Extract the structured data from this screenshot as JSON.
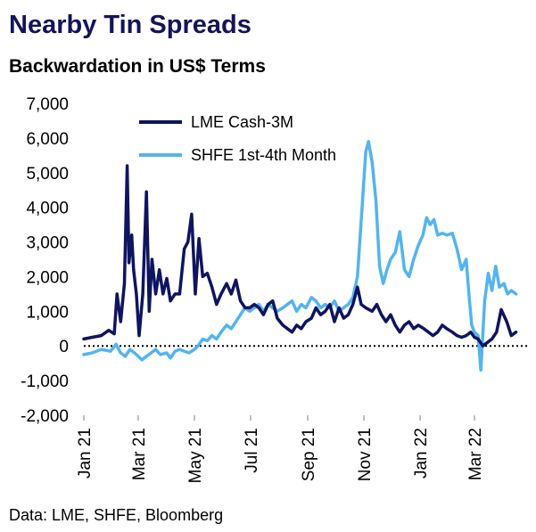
{
  "title": "Nearby Tin Spreads",
  "subtitle": "Backwardation in US$ Terms",
  "source": "Data: LME, SHFE, Bloomberg",
  "chart_data": {
    "type": "line",
    "title": "Nearby Tin Spreads",
    "subtitle": "Backwardation in US$ Terms",
    "ylim": [
      -2000,
      7000
    ],
    "yticks": [
      -2000,
      -1000,
      0,
      1000,
      2000,
      3000,
      4000,
      5000,
      6000,
      7000
    ],
    "ytick_labels": [
      "-2,000",
      "-1,000",
      "0",
      "1,000",
      "2,000",
      "3,000",
      "4,000",
      "5,000",
      "6,000",
      "7,000"
    ],
    "xlim": [
      "2021-01-01",
      "2022-04-30"
    ],
    "xticks": [
      "2021-01-01",
      "2021-03-01",
      "2021-05-01",
      "2021-07-01",
      "2021-09-01",
      "2021-11-01",
      "2022-01-01",
      "2022-03-01"
    ],
    "xtick_labels": [
      "Jan 21",
      "Mar 21",
      "May 21",
      "Jul 21",
      "Sep 21",
      "Nov 21",
      "Jan 22",
      "Mar 22"
    ],
    "zero_line": "dotted",
    "grid": false,
    "legend_position": "top",
    "series": [
      {
        "name": "LME Cash-3M",
        "color": "#0f1460",
        "points": [
          [
            "2021-01-01",
            200
          ],
          [
            "2021-01-10",
            250
          ],
          [
            "2021-01-20",
            300
          ],
          [
            "2021-01-28",
            450
          ],
          [
            "2021-02-03",
            350
          ],
          [
            "2021-02-06",
            1500
          ],
          [
            "2021-02-10",
            700
          ],
          [
            "2021-02-14",
            1800
          ],
          [
            "2021-02-17",
            5200
          ],
          [
            "2021-02-19",
            2400
          ],
          [
            "2021-02-22",
            3200
          ],
          [
            "2021-02-24",
            2200
          ],
          [
            "2021-02-27",
            1500
          ],
          [
            "2021-03-02",
            300
          ],
          [
            "2021-03-06",
            1500
          ],
          [
            "2021-03-10",
            4450
          ],
          [
            "2021-03-13",
            1000
          ],
          [
            "2021-03-16",
            2500
          ],
          [
            "2021-03-20",
            1500
          ],
          [
            "2021-03-24",
            2200
          ],
          [
            "2021-03-28",
            1500
          ],
          [
            "2021-04-01",
            1950
          ],
          [
            "2021-04-05",
            1300
          ],
          [
            "2021-04-10",
            1500
          ],
          [
            "2021-04-15",
            1500
          ],
          [
            "2021-04-20",
            2800
          ],
          [
            "2021-04-24",
            3000
          ],
          [
            "2021-04-28",
            3800
          ],
          [
            "2021-05-02",
            1500
          ],
          [
            "2021-05-06",
            3100
          ],
          [
            "2021-05-10",
            2000
          ],
          [
            "2021-05-15",
            2100
          ],
          [
            "2021-05-20",
            1700
          ],
          [
            "2021-05-25",
            1200
          ],
          [
            "2021-05-30",
            1500
          ],
          [
            "2021-06-05",
            1800
          ],
          [
            "2021-06-10",
            1500
          ],
          [
            "2021-06-15",
            1900
          ],
          [
            "2021-06-20",
            1300
          ],
          [
            "2021-06-25",
            1100
          ],
          [
            "2021-06-30",
            1100
          ],
          [
            "2021-07-05",
            1200
          ],
          [
            "2021-07-10",
            1100
          ],
          [
            "2021-07-15",
            900
          ],
          [
            "2021-07-20",
            1200
          ],
          [
            "2021-07-25",
            1300
          ],
          [
            "2021-07-30",
            800
          ],
          [
            "2021-08-05",
            600
          ],
          [
            "2021-08-10",
            500
          ],
          [
            "2021-08-15",
            400
          ],
          [
            "2021-08-20",
            600
          ],
          [
            "2021-08-25",
            500
          ],
          [
            "2021-08-30",
            700
          ],
          [
            "2021-09-05",
            800
          ],
          [
            "2021-09-10",
            1100
          ],
          [
            "2021-09-15",
            900
          ],
          [
            "2021-09-20",
            1000
          ],
          [
            "2021-09-25",
            1200
          ],
          [
            "2021-09-30",
            700
          ],
          [
            "2021-10-05",
            1100
          ],
          [
            "2021-10-10",
            800
          ],
          [
            "2021-10-15",
            900
          ],
          [
            "2021-10-20",
            1200
          ],
          [
            "2021-10-25",
            1700
          ],
          [
            "2021-10-29",
            1200
          ],
          [
            "2021-11-03",
            1100
          ],
          [
            "2021-11-10",
            1000
          ],
          [
            "2021-11-15",
            1200
          ],
          [
            "2021-11-20",
            900
          ],
          [
            "2021-11-25",
            700
          ],
          [
            "2021-11-30",
            900
          ],
          [
            "2021-12-05",
            600
          ],
          [
            "2021-12-10",
            400
          ],
          [
            "2021-12-15",
            600
          ],
          [
            "2021-12-20",
            700
          ],
          [
            "2021-12-25",
            500
          ],
          [
            "2021-12-30",
            600
          ],
          [
            "2022-01-05",
            500
          ],
          [
            "2022-01-10",
            400
          ],
          [
            "2022-01-15",
            300
          ],
          [
            "2022-01-20",
            400
          ],
          [
            "2022-01-25",
            600
          ],
          [
            "2022-01-30",
            500
          ],
          [
            "2022-02-05",
            400
          ],
          [
            "2022-02-10",
            300
          ],
          [
            "2022-02-15",
            250
          ],
          [
            "2022-02-20",
            300
          ],
          [
            "2022-02-25",
            400
          ],
          [
            "2022-03-01",
            250
          ],
          [
            "2022-03-05",
            200
          ],
          [
            "2022-03-10",
            0
          ],
          [
            "2022-03-15",
            100
          ],
          [
            "2022-03-20",
            200
          ],
          [
            "2022-03-25",
            400
          ],
          [
            "2022-03-30",
            1050
          ],
          [
            "2022-04-05",
            700
          ],
          [
            "2022-04-10",
            300
          ],
          [
            "2022-04-15",
            400
          ]
        ]
      },
      {
        "name": "SHFE 1st-4th Month",
        "color": "#53b4ef",
        "points": [
          [
            "2021-01-01",
            -250
          ],
          [
            "2021-01-10",
            -200
          ],
          [
            "2021-01-20",
            -100
          ],
          [
            "2021-01-30",
            -150
          ],
          [
            "2021-02-05",
            50
          ],
          [
            "2021-02-10",
            -200
          ],
          [
            "2021-02-15",
            -300
          ],
          [
            "2021-02-20",
            -100
          ],
          [
            "2021-02-25",
            -200
          ],
          [
            "2021-03-01",
            -300
          ],
          [
            "2021-03-05",
            -400
          ],
          [
            "2021-03-10",
            -300
          ],
          [
            "2021-03-15",
            -200
          ],
          [
            "2021-03-20",
            -100
          ],
          [
            "2021-03-25",
            -250
          ],
          [
            "2021-04-01",
            -200
          ],
          [
            "2021-04-05",
            -350
          ],
          [
            "2021-04-10",
            -150
          ],
          [
            "2021-04-15",
            -100
          ],
          [
            "2021-04-20",
            -150
          ],
          [
            "2021-04-25",
            -200
          ],
          [
            "2021-05-01",
            -100
          ],
          [
            "2021-05-05",
            0
          ],
          [
            "2021-05-10",
            200
          ],
          [
            "2021-05-15",
            150
          ],
          [
            "2021-05-20",
            300
          ],
          [
            "2021-05-25",
            200
          ],
          [
            "2021-05-30",
            400
          ],
          [
            "2021-06-05",
            600
          ],
          [
            "2021-06-10",
            500
          ],
          [
            "2021-06-15",
            700
          ],
          [
            "2021-06-20",
            900
          ],
          [
            "2021-06-25",
            1100
          ],
          [
            "2021-06-30",
            1000
          ],
          [
            "2021-07-05",
            1100
          ],
          [
            "2021-07-10",
            1200
          ],
          [
            "2021-07-15",
            1000
          ],
          [
            "2021-07-20",
            1200
          ],
          [
            "2021-07-25",
            1100
          ],
          [
            "2021-07-30",
            1000
          ],
          [
            "2021-08-05",
            1100
          ],
          [
            "2021-08-10",
            1200
          ],
          [
            "2021-08-15",
            1300
          ],
          [
            "2021-08-20",
            1000
          ],
          [
            "2021-08-25",
            1200
          ],
          [
            "2021-08-30",
            1100
          ],
          [
            "2021-09-05",
            1400
          ],
          [
            "2021-09-10",
            1300
          ],
          [
            "2021-09-15",
            1100
          ],
          [
            "2021-09-20",
            1200
          ],
          [
            "2021-09-25",
            1100
          ],
          [
            "2021-09-30",
            1300
          ],
          [
            "2021-10-05",
            1000
          ],
          [
            "2021-10-10",
            1100
          ],
          [
            "2021-10-15",
            1200
          ],
          [
            "2021-10-20",
            1400
          ],
          [
            "2021-10-25",
            2000
          ],
          [
            "2021-10-30",
            4000
          ],
          [
            "2021-11-03",
            5600
          ],
          [
            "2021-11-06",
            5900
          ],
          [
            "2021-11-10",
            5300
          ],
          [
            "2021-11-14",
            4200
          ],
          [
            "2021-11-18",
            2300
          ],
          [
            "2021-11-22",
            1800
          ],
          [
            "2021-11-26",
            2200
          ],
          [
            "2021-11-30",
            2500
          ],
          [
            "2021-12-05",
            2700
          ],
          [
            "2021-12-10",
            3300
          ],
          [
            "2021-12-15",
            2200
          ],
          [
            "2021-12-20",
            2000
          ],
          [
            "2021-12-25",
            2500
          ],
          [
            "2021-12-30",
            2900
          ],
          [
            "2022-01-04",
            3200
          ],
          [
            "2022-01-08",
            3700
          ],
          [
            "2022-01-12",
            3500
          ],
          [
            "2022-01-16",
            3650
          ],
          [
            "2022-01-20",
            3200
          ],
          [
            "2022-01-25",
            3250
          ],
          [
            "2022-01-30",
            3200
          ],
          [
            "2022-02-05",
            3250
          ],
          [
            "2022-02-10",
            2800
          ],
          [
            "2022-02-15",
            2200
          ],
          [
            "2022-02-20",
            2500
          ],
          [
            "2022-02-23",
            1500
          ],
          [
            "2022-02-26",
            600
          ],
          [
            "2022-03-01",
            400
          ],
          [
            "2022-03-05",
            300
          ],
          [
            "2022-03-08",
            -700
          ],
          [
            "2022-03-12",
            1300
          ],
          [
            "2022-03-16",
            2100
          ],
          [
            "2022-03-20",
            1600
          ],
          [
            "2022-03-24",
            2300
          ],
          [
            "2022-03-28",
            1700
          ],
          [
            "2022-04-02",
            1800
          ],
          [
            "2022-04-06",
            1500
          ],
          [
            "2022-04-10",
            1600
          ],
          [
            "2022-04-15",
            1500
          ]
        ]
      }
    ]
  }
}
